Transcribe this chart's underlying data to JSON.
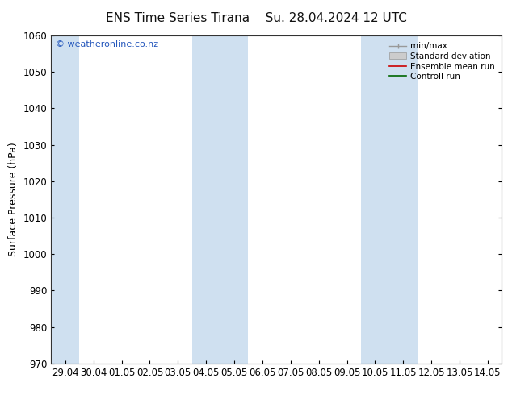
{
  "title": "ENS Time Series Tirana",
  "subtitle": "Su. 28.04.2024 12 UTC",
  "ylabel": "Surface Pressure (hPa)",
  "ylim": [
    970,
    1060
  ],
  "yticks": [
    970,
    980,
    990,
    1000,
    1010,
    1020,
    1030,
    1040,
    1050,
    1060
  ],
  "xlabels": [
    "29.04",
    "30.04",
    "01.05",
    "02.05",
    "03.05",
    "04.05",
    "05.05",
    "06.05",
    "07.05",
    "08.05",
    "09.05",
    "10.05",
    "11.05",
    "12.05",
    "13.05",
    "14.05"
  ],
  "shade_indices": [
    0,
    5,
    6,
    11,
    12
  ],
  "shade_color": "#cfe0f0",
  "bg_color": "#ffffff",
  "watermark": "© weatheronline.co.nz",
  "watermark_color": "#2255bb",
  "figsize": [
    6.34,
    4.9
  ],
  "dpi": 100,
  "title_fontsize": 11,
  "ylabel_fontsize": 9,
  "tick_fontsize": 8.5
}
